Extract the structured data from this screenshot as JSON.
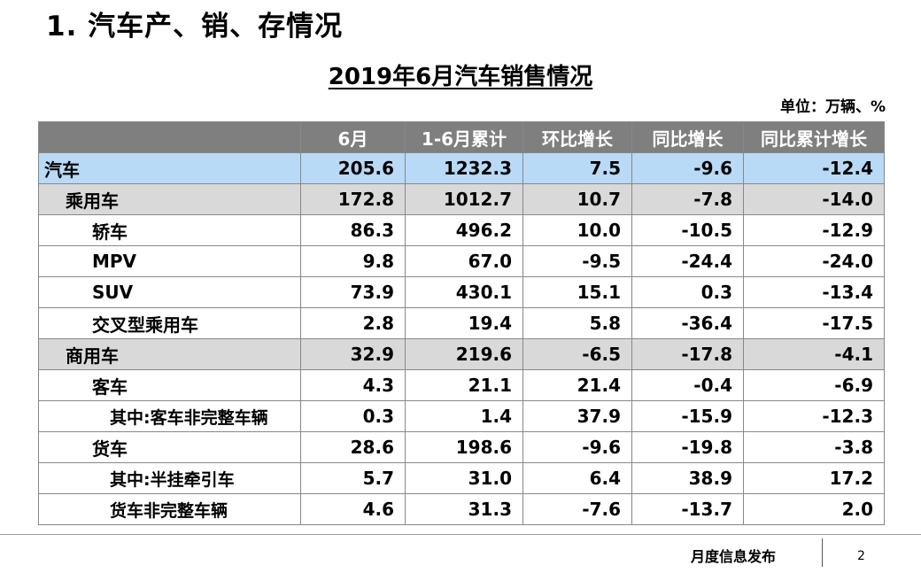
{
  "slide_title": "1. 汽车产、销、存情况",
  "table_title": "2019年6月汽车销售情况",
  "unit": "单位：万辆、%",
  "columns": [
    "",
    "6月",
    "1-6月累计",
    "环比增长",
    "同比增长",
    "同比累计增长"
  ],
  "rows": [
    {
      "name": "汽车",
      "level": 0,
      "values": [
        "205.6",
        "1232.3",
        "7.5",
        "-9.6",
        "-12.4"
      ]
    },
    {
      "name": "乘用车",
      "level": 1,
      "values": [
        "172.8",
        "1012.7",
        "10.7",
        "-7.8",
        "-14.0"
      ]
    },
    {
      "name": "轿车",
      "level": 2,
      "values": [
        "86.3",
        "496.2",
        "10.0",
        "-10.5",
        "-12.9"
      ]
    },
    {
      "name": "MPV",
      "level": 2,
      "values": [
        "9.8",
        "67.0",
        "-9.5",
        "-24.4",
        "-24.0"
      ]
    },
    {
      "name": "SUV",
      "level": 2,
      "values": [
        "73.9",
        "430.1",
        "15.1",
        "0.3",
        "-13.4"
      ]
    },
    {
      "name": "交叉型乘用车",
      "level": 2,
      "values": [
        "2.8",
        "19.4",
        "5.8",
        "-36.4",
        "-17.5"
      ]
    },
    {
      "name": "商用车",
      "level": 1,
      "values": [
        "32.9",
        "219.6",
        "-6.5",
        "-17.8",
        "-4.1"
      ]
    },
    {
      "name": "客车",
      "level": 2,
      "values": [
        "4.3",
        "21.1",
        "21.4",
        "-0.4",
        "-6.9"
      ]
    },
    {
      "name": "其中:客车非完整车辆",
      "level": 3,
      "values": [
        "0.3",
        "1.4",
        "37.9",
        "-15.9",
        "-12.3"
      ]
    },
    {
      "name": "货车",
      "level": 2,
      "values": [
        "28.6",
        "198.6",
        "-9.6",
        "-19.8",
        "-3.8"
      ]
    },
    {
      "name": "其中:半挂牵引车",
      "level": 3,
      "values": [
        "5.7",
        "31.0",
        "6.4",
        "38.9",
        "17.2"
      ]
    },
    {
      "name": "货车非完整车辆",
      "level": 3,
      "values": [
        "4.6",
        "31.3",
        "-7.6",
        "-13.7",
        "2.0"
      ]
    }
  ],
  "footer": {
    "label": "月度信息发布",
    "page": "2"
  }
}
